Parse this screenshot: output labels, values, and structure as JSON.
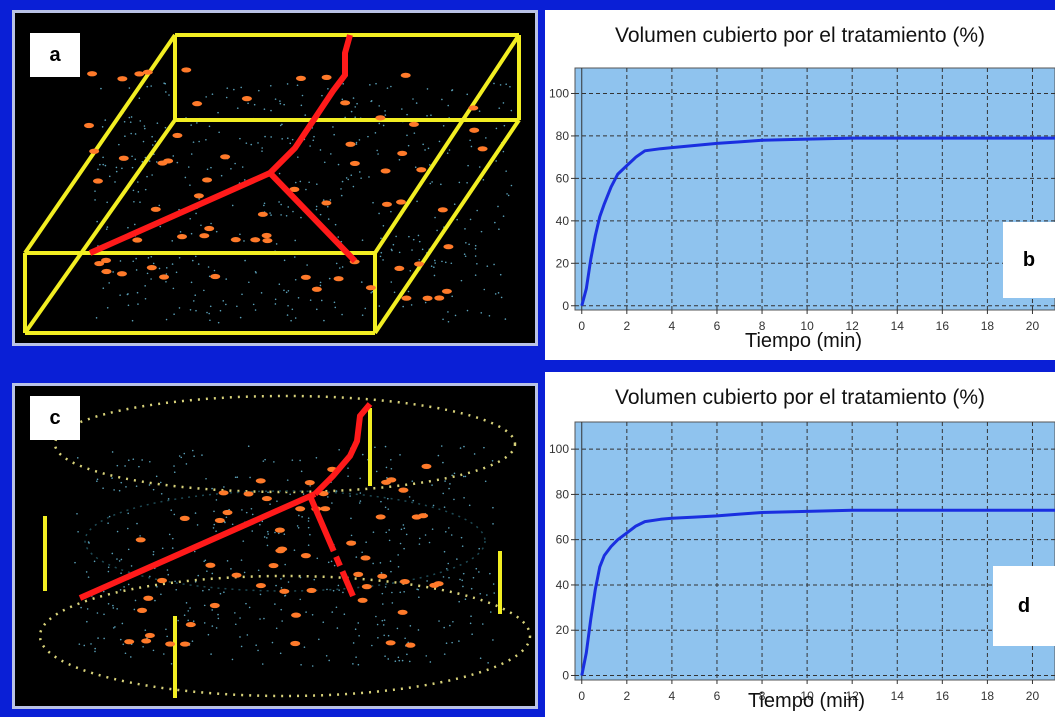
{
  "panels": {
    "a": {
      "label": "a"
    },
    "c": {
      "label": "c"
    }
  },
  "colors": {
    "background": "#0a1fd6",
    "plot_bg": "#8fc3ee",
    "curve": "#1a2fe0",
    "box": "#f2ee22",
    "needle": "#ff1a1a",
    "seed": "#ff7a2a"
  },
  "chart_data": [
    {
      "type": "line",
      "panel_label": "b",
      "title": "Volumen cubierto por el tratamiento (%)",
      "xlabel": "Tiempo (min)",
      "ylabel": "",
      "xlim": [
        -0.3,
        21
      ],
      "ylim": [
        -2,
        112
      ],
      "xticks": [
        0,
        2,
        4,
        6,
        8,
        10,
        12,
        14,
        16,
        18,
        20
      ],
      "yticks": [
        0,
        20,
        40,
        60,
        80,
        100
      ],
      "grid": true,
      "series": [
        {
          "x": [
            0,
            0.2,
            0.4,
            0.6,
            0.8,
            1.0,
            1.3,
            1.6,
            2.0,
            2.4,
            2.8,
            3.5,
            4,
            5,
            6,
            7,
            8,
            10,
            12,
            14,
            16,
            18,
            20,
            21
          ],
          "y": [
            0,
            8,
            22,
            33,
            42,
            48,
            56,
            62,
            66,
            70,
            73,
            74,
            74.5,
            75.5,
            76.5,
            77.2,
            78,
            78.5,
            79,
            79,
            79,
            79,
            79,
            79
          ]
        }
      ]
    },
    {
      "type": "line",
      "panel_label": "d",
      "title": "Volumen cubierto por el tratamiento (%)",
      "xlabel": "Tiempo (min)",
      "ylabel": "",
      "xlim": [
        -0.3,
        21
      ],
      "ylim": [
        -2,
        112
      ],
      "xticks": [
        0,
        2,
        4,
        6,
        8,
        10,
        12,
        14,
        16,
        18,
        20
      ],
      "yticks": [
        0,
        20,
        40,
        60,
        80,
        100
      ],
      "grid": true,
      "series": [
        {
          "x": [
            0,
            0.2,
            0.4,
            0.6,
            0.8,
            1.0,
            1.3,
            1.6,
            2.0,
            2.4,
            2.8,
            3.5,
            4,
            5,
            6,
            7,
            8,
            10,
            12,
            14,
            16,
            18,
            20,
            21
          ],
          "y": [
            0,
            10,
            25,
            38,
            48,
            53,
            57,
            60,
            63,
            66,
            68,
            69,
            69.5,
            70,
            70.5,
            71.3,
            72,
            72.5,
            73,
            73,
            73,
            73,
            73,
            73
          ]
        }
      ]
    }
  ]
}
